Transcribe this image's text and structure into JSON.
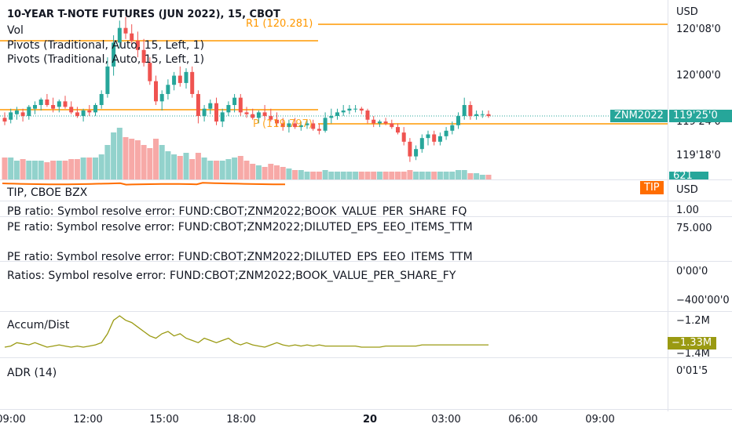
{
  "main": {
    "title": "10-YEAR T-NOTE FUTURES (JUN 2022), 15, CBOT",
    "vol_label": "Vol",
    "pivots1": "Pivots (Traditional, Auto, 15, Left, 1)",
    "pivots2": "Pivots (Traditional, Auto, 15, Left, 1)",
    "r1_label": "R1 (120.281)",
    "p_label": "P (119.797)",
    "currency": "USD",
    "prices": [
      "120'08'0",
      "120'00'0",
      "119'24'0",
      "119'18'0"
    ],
    "symbol_tag": "ZNM2022",
    "last_price": "119'25'0",
    "volume_tag": "621"
  },
  "tip": {
    "label": "TIP, CBOE BZX",
    "tag": "TIP",
    "currency": "USD",
    "value": "1.00"
  },
  "pb": {
    "label": "PB ratio: Symbol resolve error: FUND:CBOT;ZNM2022;BOOK_VALUE_PER_SHARE_FQ"
  },
  "pe": {
    "label1": "PE ratio: Symbol resolve error: FUND:CBOT;ZNM2022;DILUTED_EPS_EEO_ITEMS_TTM",
    "label2": "PE ratio: Symbol resolve error: FUND:CBOT;ZNM2022;DILUTED_EPS_EEO_ITEMS_TTM",
    "scale": "75.000"
  },
  "ratios": {
    "label": "Ratios: Symbol resolve error: FUND:CBOT;ZNM2022;BOOK_VALUE_PER_SHARE_FY",
    "scale1": "0'00'0",
    "scale2": "−400'00'0"
  },
  "accum": {
    "label": "Accum/Dist",
    "scale1": "−1.2M",
    "tag": "−1.33M",
    "scale2": "−1.4M"
  },
  "adr": {
    "label": "ADR (14)",
    "scale": "0'01'5"
  },
  "time_axis": [
    "09:00",
    "12:00",
    "15:00",
    "18:00",
    "20",
    "03:00",
    "06:00",
    "09:00"
  ],
  "colors": {
    "up": "#26a69a",
    "down": "#ef5350",
    "pivot": "#ff9800",
    "tip": "#ff6d00",
    "accum": "#9a9a12",
    "text": "#131722"
  },
  "chart_data": {
    "type": "candlestick",
    "candles": [
      {
        "o": 119.77,
        "h": 119.8,
        "l": 119.73,
        "c": 119.75
      },
      {
        "o": 119.76,
        "h": 119.82,
        "l": 119.74,
        "c": 119.8
      },
      {
        "o": 119.79,
        "h": 119.83,
        "l": 119.76,
        "c": 119.81
      },
      {
        "o": 119.8,
        "h": 119.82,
        "l": 119.75,
        "c": 119.78
      },
      {
        "o": 119.78,
        "h": 119.84,
        "l": 119.76,
        "c": 119.83
      },
      {
        "o": 119.82,
        "h": 119.86,
        "l": 119.79,
        "c": 119.84
      },
      {
        "o": 119.84,
        "h": 119.88,
        "l": 119.81,
        "c": 119.87
      },
      {
        "o": 119.87,
        "h": 119.9,
        "l": 119.83,
        "c": 119.84
      },
      {
        "o": 119.84,
        "h": 119.88,
        "l": 119.8,
        "c": 119.82
      },
      {
        "o": 119.83,
        "h": 119.87,
        "l": 119.8,
        "c": 119.86
      },
      {
        "o": 119.86,
        "h": 119.89,
        "l": 119.82,
        "c": 119.83
      },
      {
        "o": 119.83,
        "h": 119.86,
        "l": 119.79,
        "c": 119.8
      },
      {
        "o": 119.8,
        "h": 119.83,
        "l": 119.77,
        "c": 119.78
      },
      {
        "o": 119.78,
        "h": 119.82,
        "l": 119.75,
        "c": 119.81
      },
      {
        "o": 119.81,
        "h": 119.84,
        "l": 119.78,
        "c": 119.8
      },
      {
        "o": 119.8,
        "h": 119.85,
        "l": 119.78,
        "c": 119.84
      },
      {
        "o": 119.84,
        "h": 119.92,
        "l": 119.82,
        "c": 119.9
      },
      {
        "o": 119.9,
        "h": 120.1,
        "l": 119.88,
        "c": 120.05
      },
      {
        "o": 120.05,
        "h": 120.22,
        "l": 120.0,
        "c": 120.18
      },
      {
        "o": 120.18,
        "h": 120.3,
        "l": 120.15,
        "c": 120.26
      },
      {
        "o": 120.26,
        "h": 120.32,
        "l": 120.2,
        "c": 120.23
      },
      {
        "o": 120.23,
        "h": 120.28,
        "l": 120.17,
        "c": 120.19
      },
      {
        "o": 120.19,
        "h": 120.24,
        "l": 120.1,
        "c": 120.14
      },
      {
        "o": 120.14,
        "h": 120.2,
        "l": 120.05,
        "c": 120.07
      },
      {
        "o": 120.07,
        "h": 120.1,
        "l": 119.95,
        "c": 119.97
      },
      {
        "o": 119.97,
        "h": 120.0,
        "l": 119.84,
        "c": 119.86
      },
      {
        "o": 119.86,
        "h": 119.92,
        "l": 119.81,
        "c": 119.9
      },
      {
        "o": 119.9,
        "h": 119.98,
        "l": 119.87,
        "c": 119.95
      },
      {
        "o": 119.95,
        "h": 120.02,
        "l": 119.92,
        "c": 120.0
      },
      {
        "o": 120.0,
        "h": 120.05,
        "l": 119.94,
        "c": 119.96
      },
      {
        "o": 119.96,
        "h": 120.04,
        "l": 119.93,
        "c": 120.02
      },
      {
        "o": 120.02,
        "h": 120.05,
        "l": 119.88,
        "c": 119.9
      },
      {
        "o": 119.9,
        "h": 119.92,
        "l": 119.74,
        "c": 119.78
      },
      {
        "o": 119.78,
        "h": 119.84,
        "l": 119.75,
        "c": 119.82
      },
      {
        "o": 119.82,
        "h": 119.87,
        "l": 119.79,
        "c": 119.85
      },
      {
        "o": 119.85,
        "h": 119.88,
        "l": 119.73,
        "c": 119.75
      },
      {
        "o": 119.75,
        "h": 119.82,
        "l": 119.72,
        "c": 119.8
      },
      {
        "o": 119.8,
        "h": 119.86,
        "l": 119.78,
        "c": 119.84
      },
      {
        "o": 119.84,
        "h": 119.9,
        "l": 119.8,
        "c": 119.88
      },
      {
        "o": 119.88,
        "h": 119.9,
        "l": 119.78,
        "c": 119.8
      },
      {
        "o": 119.8,
        "h": 119.83,
        "l": 119.77,
        "c": 119.79
      },
      {
        "o": 119.79,
        "h": 119.82,
        "l": 119.76,
        "c": 119.77
      },
      {
        "o": 119.77,
        "h": 119.81,
        "l": 119.74,
        "c": 119.8
      },
      {
        "o": 119.8,
        "h": 119.84,
        "l": 119.76,
        "c": 119.78
      },
      {
        "o": 119.78,
        "h": 119.82,
        "l": 119.75,
        "c": 119.76
      },
      {
        "o": 119.76,
        "h": 119.8,
        "l": 119.72,
        "c": 119.74
      },
      {
        "o": 119.74,
        "h": 119.77,
        "l": 119.7,
        "c": 119.72
      },
      {
        "o": 119.72,
        "h": 119.76,
        "l": 119.69,
        "c": 119.74
      },
      {
        "o": 119.74,
        "h": 119.77,
        "l": 119.71,
        "c": 119.72
      },
      {
        "o": 119.72,
        "h": 119.75,
        "l": 119.7,
        "c": 119.73
      },
      {
        "o": 119.73,
        "h": 119.76,
        "l": 119.71,
        "c": 119.74
      },
      {
        "o": 119.74,
        "h": 119.76,
        "l": 119.7,
        "c": 119.71
      },
      {
        "o": 119.71,
        "h": 119.74,
        "l": 119.68,
        "c": 119.7
      },
      {
        "o": 119.7,
        "h": 119.8,
        "l": 119.69,
        "c": 119.77
      },
      {
        "o": 119.77,
        "h": 119.82,
        "l": 119.74,
        "c": 119.78
      },
      {
        "o": 119.78,
        "h": 119.82,
        "l": 119.76,
        "c": 119.8
      },
      {
        "o": 119.8,
        "h": 119.84,
        "l": 119.78,
        "c": 119.81
      },
      {
        "o": 119.81,
        "h": 119.84,
        "l": 119.79,
        "c": 119.82
      },
      {
        "o": 119.82,
        "h": 119.84,
        "l": 119.8,
        "c": 119.82
      },
      {
        "o": 119.82,
        "h": 119.83,
        "l": 119.79,
        "c": 119.81
      },
      {
        "o": 119.81,
        "h": 119.82,
        "l": 119.74,
        "c": 119.76
      },
      {
        "o": 119.76,
        "h": 119.78,
        "l": 119.72,
        "c": 119.74
      },
      {
        "o": 119.74,
        "h": 119.76,
        "l": 119.72,
        "c": 119.75
      },
      {
        "o": 119.75,
        "h": 119.77,
        "l": 119.73,
        "c": 119.74
      },
      {
        "o": 119.74,
        "h": 119.76,
        "l": 119.71,
        "c": 119.72
      },
      {
        "o": 119.72,
        "h": 119.74,
        "l": 119.68,
        "c": 119.69
      },
      {
        "o": 119.69,
        "h": 119.72,
        "l": 119.62,
        "c": 119.64
      },
      {
        "o": 119.64,
        "h": 119.66,
        "l": 119.53,
        "c": 119.56
      },
      {
        "o": 119.56,
        "h": 119.62,
        "l": 119.54,
        "c": 119.6
      },
      {
        "o": 119.6,
        "h": 119.68,
        "l": 119.58,
        "c": 119.66
      },
      {
        "o": 119.66,
        "h": 119.7,
        "l": 119.62,
        "c": 119.68
      },
      {
        "o": 119.68,
        "h": 119.7,
        "l": 119.62,
        "c": 119.64
      },
      {
        "o": 119.64,
        "h": 119.69,
        "l": 119.62,
        "c": 119.67
      },
      {
        "o": 119.67,
        "h": 119.72,
        "l": 119.65,
        "c": 119.7
      },
      {
        "o": 119.7,
        "h": 119.75,
        "l": 119.68,
        "c": 119.73
      },
      {
        "o": 119.73,
        "h": 119.8,
        "l": 119.71,
        "c": 119.78
      },
      {
        "o": 119.78,
        "h": 119.88,
        "l": 119.76,
        "c": 119.84
      },
      {
        "o": 119.84,
        "h": 119.86,
        "l": 119.76,
        "c": 119.78
      },
      {
        "o": 119.78,
        "h": 119.81,
        "l": 119.76,
        "c": 119.79
      },
      {
        "o": 119.79,
        "h": 119.81,
        "l": 119.77,
        "c": 119.79
      },
      {
        "o": 119.79,
        "h": 119.81,
        "l": 119.77,
        "c": 119.78
      }
    ],
    "volume": [
      14,
      14,
      12,
      13,
      12,
      12,
      12,
      11,
      12,
      12,
      12,
      13,
      13,
      14,
      14,
      14,
      16,
      22,
      30,
      33,
      27,
      26,
      25,
      22,
      20,
      26,
      22,
      18,
      16,
      15,
      17,
      13,
      17,
      14,
      12,
      12,
      12,
      13,
      14,
      15,
      12,
      10,
      9,
      8,
      10,
      9,
      8,
      7,
      6,
      6,
      5,
      5,
      5,
      6,
      5,
      5,
      5,
      5,
      5,
      5,
      5,
      5,
      5,
      5,
      5,
      5,
      5,
      6,
      5,
      5,
      5,
      5,
      5,
      5,
      5,
      6,
      6,
      4,
      4,
      3,
      3
    ],
    "accum_dist": [
      -1.34,
      -1.335,
      -1.32,
      -1.325,
      -1.33,
      -1.32,
      -1.33,
      -1.34,
      -1.335,
      -1.33,
      -1.335,
      -1.34,
      -1.335,
      -1.34,
      -1.335,
      -1.33,
      -1.32,
      -1.28,
      -1.22,
      -1.2,
      -1.22,
      -1.23,
      -1.25,
      -1.27,
      -1.29,
      -1.3,
      -1.28,
      -1.27,
      -1.29,
      -1.28,
      -1.3,
      -1.31,
      -1.32,
      -1.3,
      -1.31,
      -1.32,
      -1.31,
      -1.3,
      -1.32,
      -1.33,
      -1.32,
      -1.33,
      -1.335,
      -1.34,
      -1.33,
      -1.32,
      -1.33,
      -1.335,
      -1.33,
      -1.335,
      -1.33,
      -1.335,
      -1.33,
      -1.335,
      -1.335,
      -1.335,
      -1.335,
      -1.335,
      -1.335,
      -1.34,
      -1.34,
      -1.34,
      -1.34,
      -1.335,
      -1.335,
      -1.335,
      -1.335,
      -1.335,
      -1.335,
      -1.33,
      -1.33,
      -1.33,
      -1.33,
      -1.33,
      -1.33,
      -1.33,
      -1.33,
      -1.33,
      -1.33,
      -1.33,
      -1.33
    ],
    "pivots": {
      "R1": 120.281,
      "P": 119.797
    },
    "last": 119.78
  }
}
